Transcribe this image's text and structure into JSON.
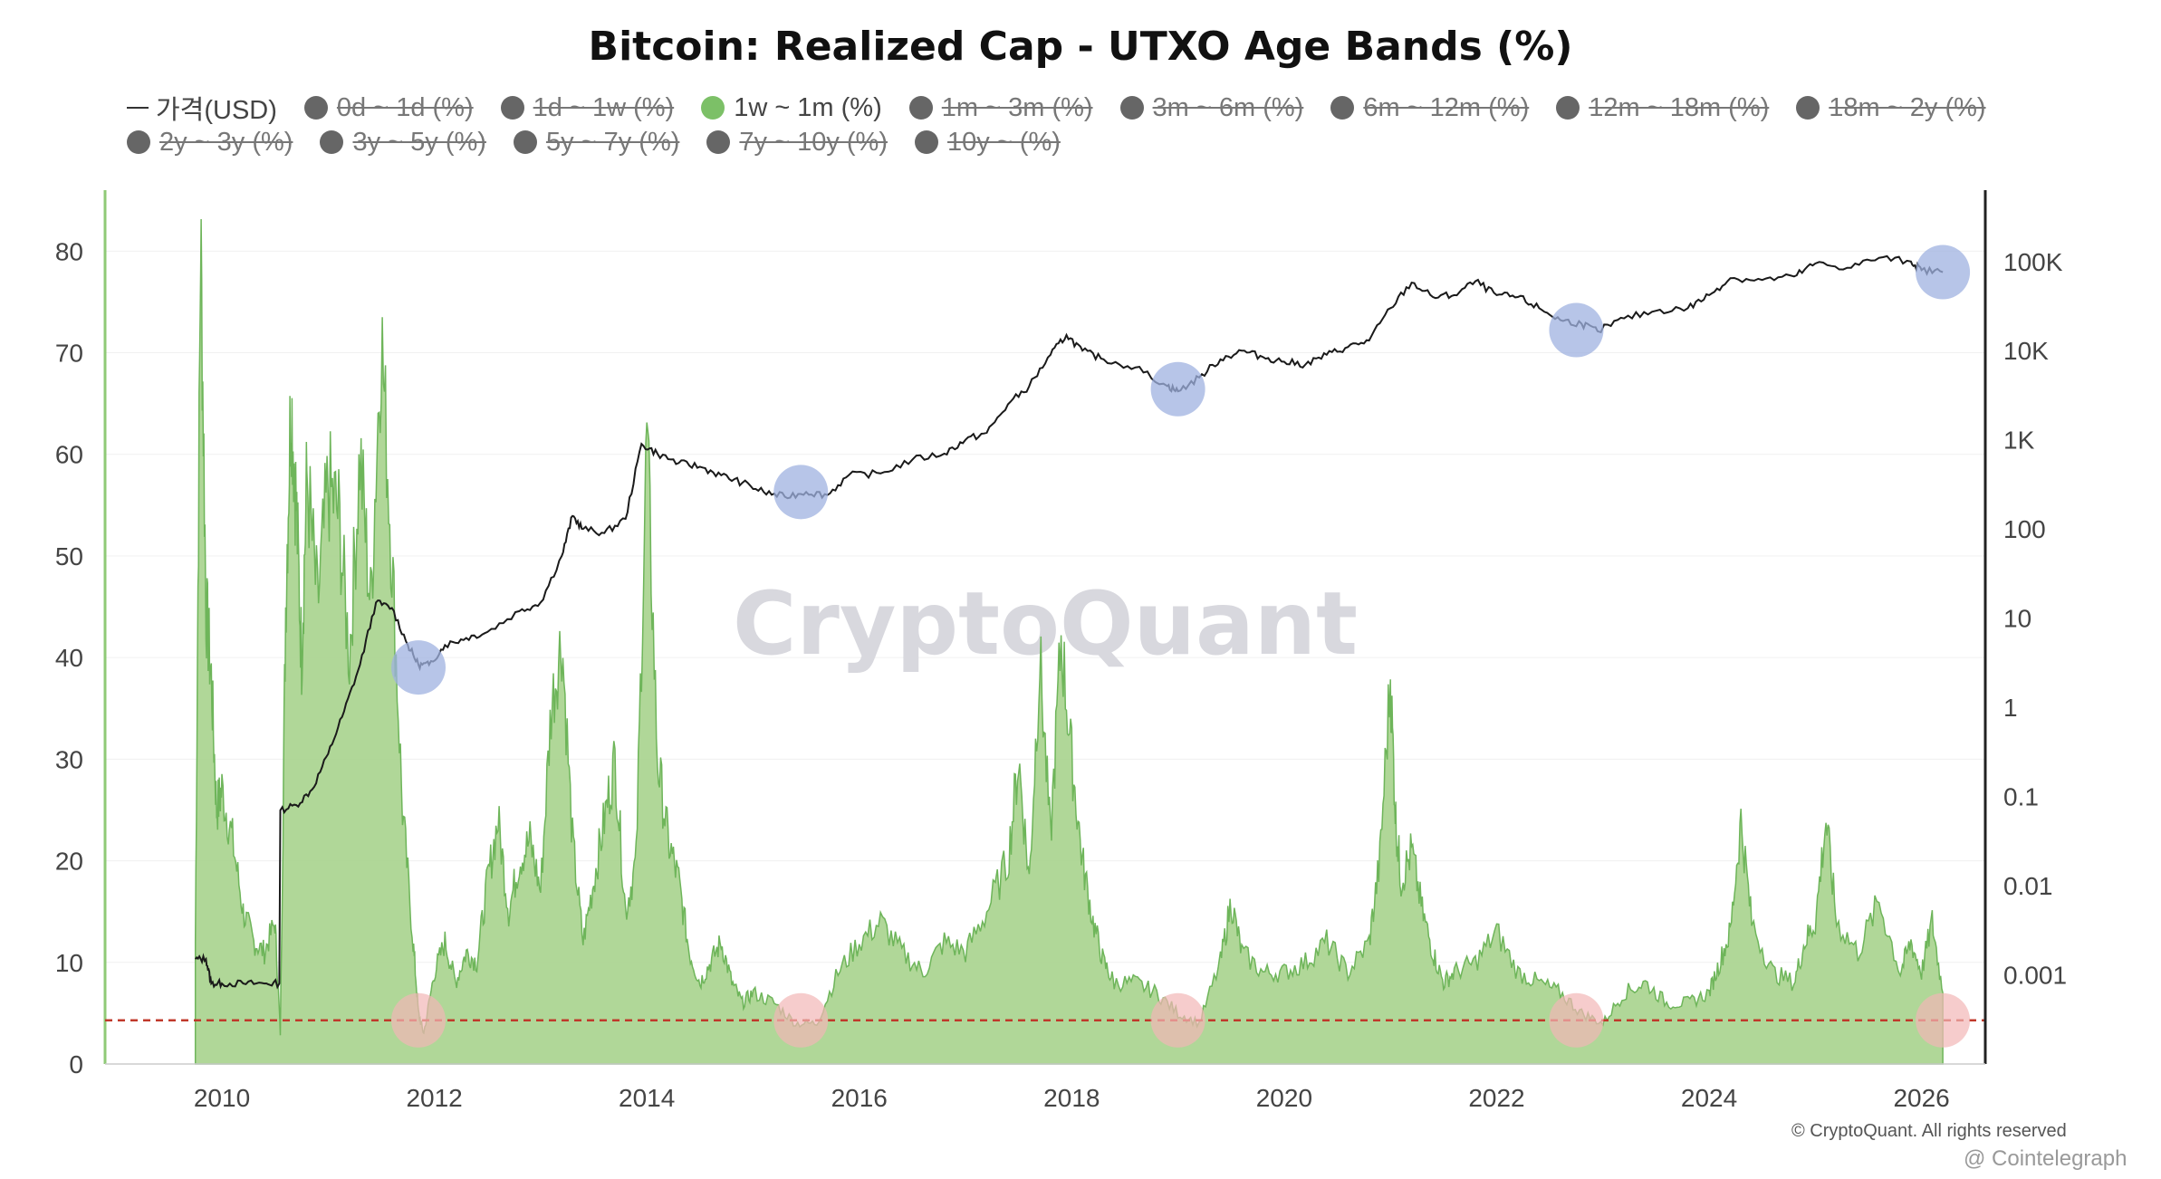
{
  "chart_data": {
    "type": "area",
    "title": "Bitcoin: Realized Cap - UTXO Age Bands (%)",
    "watermark": "CryptoQuant",
    "copyright": "© CryptoQuant. All rights reserved",
    "credit": "@ Cointelegraph",
    "legend": [
      {
        "label": "가격(USD)",
        "kind": "line",
        "active": true
      },
      {
        "label": "0d ~ 1d (%)",
        "kind": "dot",
        "active": false
      },
      {
        "label": "1d ~ 1w (%)",
        "kind": "dot",
        "active": false
      },
      {
        "label": "1w ~ 1m (%)",
        "kind": "dot",
        "active": true,
        "color": "#7cc067"
      },
      {
        "label": "1m ~ 3m (%)",
        "kind": "dot",
        "active": false
      },
      {
        "label": "3m ~ 6m (%)",
        "kind": "dot",
        "active": false
      },
      {
        "label": "6m ~ 12m (%)",
        "kind": "dot",
        "active": false
      },
      {
        "label": "12m ~ 18m (%)",
        "kind": "dot",
        "active": false
      },
      {
        "label": "18m ~ 2y (%)",
        "kind": "dot",
        "active": false
      },
      {
        "label": "2y ~ 3y (%)",
        "kind": "dot",
        "active": false
      },
      {
        "label": "3y ~ 5y (%)",
        "kind": "dot",
        "active": false
      },
      {
        "label": "5y ~ 7y (%)",
        "kind": "dot",
        "active": false
      },
      {
        "label": "7y ~ 10y (%)",
        "kind": "dot",
        "active": false
      },
      {
        "label": "10y ~ (%)",
        "kind": "dot",
        "active": false
      }
    ],
    "x_ticks": [
      "2010",
      "2012",
      "2014",
      "2016",
      "2018",
      "2020",
      "2022",
      "2024",
      "2026"
    ],
    "x_range": [
      2008.9,
      2026.6
    ],
    "y_left_ticks": [
      0,
      10,
      20,
      30,
      40,
      50,
      60,
      70,
      80
    ],
    "y_left_range": [
      0,
      86
    ],
    "y_right_ticks": [
      "0.001",
      "0.01",
      "0.1",
      "1",
      "10",
      "100",
      "1K",
      "10K",
      "100K"
    ],
    "y_right_log_range": [
      -4,
      5.8
    ],
    "threshold": 4.3,
    "colors": {
      "area_fill": "#a7d38d",
      "area_line": "#6eb55a",
      "price_line": "#1a1a1a",
      "threshold": "#c0392b",
      "bottom_marker_fill": "#f2b6b6",
      "top_marker_fill": "#9fb2e0"
    },
    "series": [
      {
        "name": "1w ~ 1m (%)",
        "x": [
          2009.75,
          2009.8,
          2009.85,
          2009.9,
          2009.95,
          2010.0,
          2010.1,
          2010.2,
          2010.3,
          2010.4,
          2010.5,
          2010.55,
          2010.6,
          2010.65,
          2010.7,
          2010.75,
          2010.8,
          2010.9,
          2011.0,
          2011.1,
          2011.2,
          2011.3,
          2011.4,
          2011.5,
          2011.6,
          2011.7,
          2011.8,
          2011.85,
          2011.9,
          2012.0,
          2012.1,
          2012.2,
          2012.3,
          2012.4,
          2012.5,
          2012.6,
          2012.7,
          2012.8,
          2012.9,
          2013.0,
          2013.1,
          2013.2,
          2013.3,
          2013.4,
          2013.5,
          2013.6,
          2013.7,
          2013.8,
          2013.9,
          2014.0,
          2014.1,
          2014.2,
          2014.3,
          2014.4,
          2014.5,
          2014.6,
          2014.7,
          2014.8,
          2014.9,
          2015.0,
          2015.2,
          2015.4,
          2015.6,
          2015.8,
          2016.0,
          2016.2,
          2016.4,
          2016.6,
          2016.8,
          2017.0,
          2017.2,
          2017.4,
          2017.5,
          2017.6,
          2017.7,
          2017.8,
          2017.9,
          2018.0,
          2018.1,
          2018.2,
          2018.3,
          2018.4,
          2018.6,
          2018.8,
          2019.0,
          2019.2,
          2019.4,
          2019.5,
          2019.6,
          2019.8,
          2020.0,
          2020.2,
          2020.4,
          2020.6,
          2020.8,
          2020.9,
          2021.0,
          2021.05,
          2021.1,
          2021.2,
          2021.3,
          2021.4,
          2021.5,
          2021.6,
          2021.8,
          2022.0,
          2022.2,
          2022.4,
          2022.6,
          2022.8,
          2023.0,
          2023.2,
          2023.4,
          2023.6,
          2023.8,
          2024.0,
          2024.1,
          2024.2,
          2024.3,
          2024.4,
          2024.6,
          2024.8,
          2024.9,
          2025.0,
          2025.1,
          2025.2,
          2025.4,
          2025.6,
          2025.8,
          2025.9,
          2026.0,
          2026.1,
          2026.2
        ],
        "values": [
          12,
          82,
          45,
          38,
          25,
          27,
          22,
          15,
          12,
          11,
          14,
          3,
          45,
          66,
          55,
          40,
          58,
          45,
          57,
          54,
          40,
          60,
          45,
          72,
          50,
          25,
          12,
          5,
          3,
          9,
          12,
          8,
          11,
          10,
          18,
          24,
          15,
          20,
          22,
          17,
          35,
          42,
          22,
          12,
          18,
          24,
          30,
          15,
          20,
          62,
          30,
          22,
          18,
          11,
          8,
          10,
          12,
          8,
          6,
          7,
          6,
          4,
          4,
          9,
          12,
          14,
          11,
          9,
          12,
          11,
          15,
          20,
          30,
          18,
          40,
          22,
          42,
          30,
          20,
          14,
          10,
          8,
          8,
          7,
          5,
          4,
          10,
          16,
          11,
          9,
          9,
          10,
          12,
          9,
          12,
          20,
          38,
          24,
          18,
          21,
          15,
          11,
          8,
          9,
          10,
          13,
          9,
          8,
          7,
          5,
          4,
          7,
          8,
          6,
          6,
          7,
          10,
          13,
          24,
          14,
          9,
          8,
          12,
          14,
          24,
          14,
          11,
          16,
          9,
          12,
          9,
          14,
          7
        ]
      },
      {
        "name": "가격(USD)",
        "x": [
          2009.75,
          2009.85,
          2009.9,
          2010.0,
          2010.2,
          2010.4,
          2010.54,
          2010.55,
          2010.7,
          2010.85,
          2011.0,
          2011.15,
          2011.3,
          2011.45,
          2011.6,
          2011.75,
          2011.85,
          2011.95,
          2012.1,
          2012.3,
          2012.5,
          2012.8,
          2013.0,
          2013.2,
          2013.3,
          2013.4,
          2013.6,
          2013.8,
          2013.95,
          2014.1,
          2014.3,
          2014.5,
          2014.7,
          2014.9,
          2015.1,
          2015.3,
          2015.5,
          2015.7,
          2015.9,
          2016.2,
          2016.5,
          2016.8,
          2017.0,
          2017.2,
          2017.4,
          2017.6,
          2017.8,
          2017.95,
          2018.1,
          2018.3,
          2018.6,
          2018.9,
          2019.0,
          2019.2,
          2019.4,
          2019.6,
          2019.8,
          2020.0,
          2020.2,
          2020.4,
          2020.6,
          2020.8,
          2021.0,
          2021.2,
          2021.4,
          2021.6,
          2021.8,
          2022.0,
          2022.2,
          2022.4,
          2022.6,
          2022.8,
          2022.95,
          2023.2,
          2023.5,
          2023.8,
          2024.0,
          2024.2,
          2024.5,
          2024.8,
          2025.0,
          2025.3,
          2025.6,
          2025.9,
          2026.0,
          2026.2
        ],
        "values": [
          0.0015,
          0.0015,
          0.0008,
          0.0008,
          0.0008,
          0.0008,
          0.0008,
          0.07,
          0.08,
          0.12,
          0.3,
          0.9,
          3,
          15,
          13,
          5,
          3,
          3,
          5,
          6,
          7,
          12,
          15,
          50,
          140,
          100,
          90,
          130,
          900,
          700,
          550,
          500,
          400,
          330,
          260,
          230,
          260,
          240,
          400,
          420,
          600,
          700,
          1000,
          1200,
          2500,
          4000,
          9000,
          15000,
          10000,
          8000,
          6500,
          4000,
          3500,
          5000,
          8000,
          10000,
          8500,
          7500,
          7000,
          9000,
          11000,
          13000,
          30000,
          58000,
          40000,
          42000,
          60000,
          42000,
          40000,
          30000,
          22000,
          20000,
          16500,
          23000,
          28000,
          30000,
          42000,
          65000,
          62000,
          68000,
          95000,
          85000,
          110000,
          100000,
          80000,
          76000
        ]
      }
    ],
    "bottom_markers": [
      {
        "x": 2011.85,
        "y": 4.3
      },
      {
        "x": 2015.45,
        "y": 4.3
      },
      {
        "x": 2019.0,
        "y": 4.3
      },
      {
        "x": 2022.75,
        "y": 4.3
      },
      {
        "x": 2026.2,
        "y": 4.3
      }
    ],
    "top_markers": [
      {
        "x": 2011.85,
        "price": 2.8
      },
      {
        "x": 2015.45,
        "price": 260
      },
      {
        "x": 2019.0,
        "price": 3700
      },
      {
        "x": 2022.75,
        "price": 17000
      },
      {
        "x": 2026.2,
        "price": 76000
      }
    ]
  }
}
